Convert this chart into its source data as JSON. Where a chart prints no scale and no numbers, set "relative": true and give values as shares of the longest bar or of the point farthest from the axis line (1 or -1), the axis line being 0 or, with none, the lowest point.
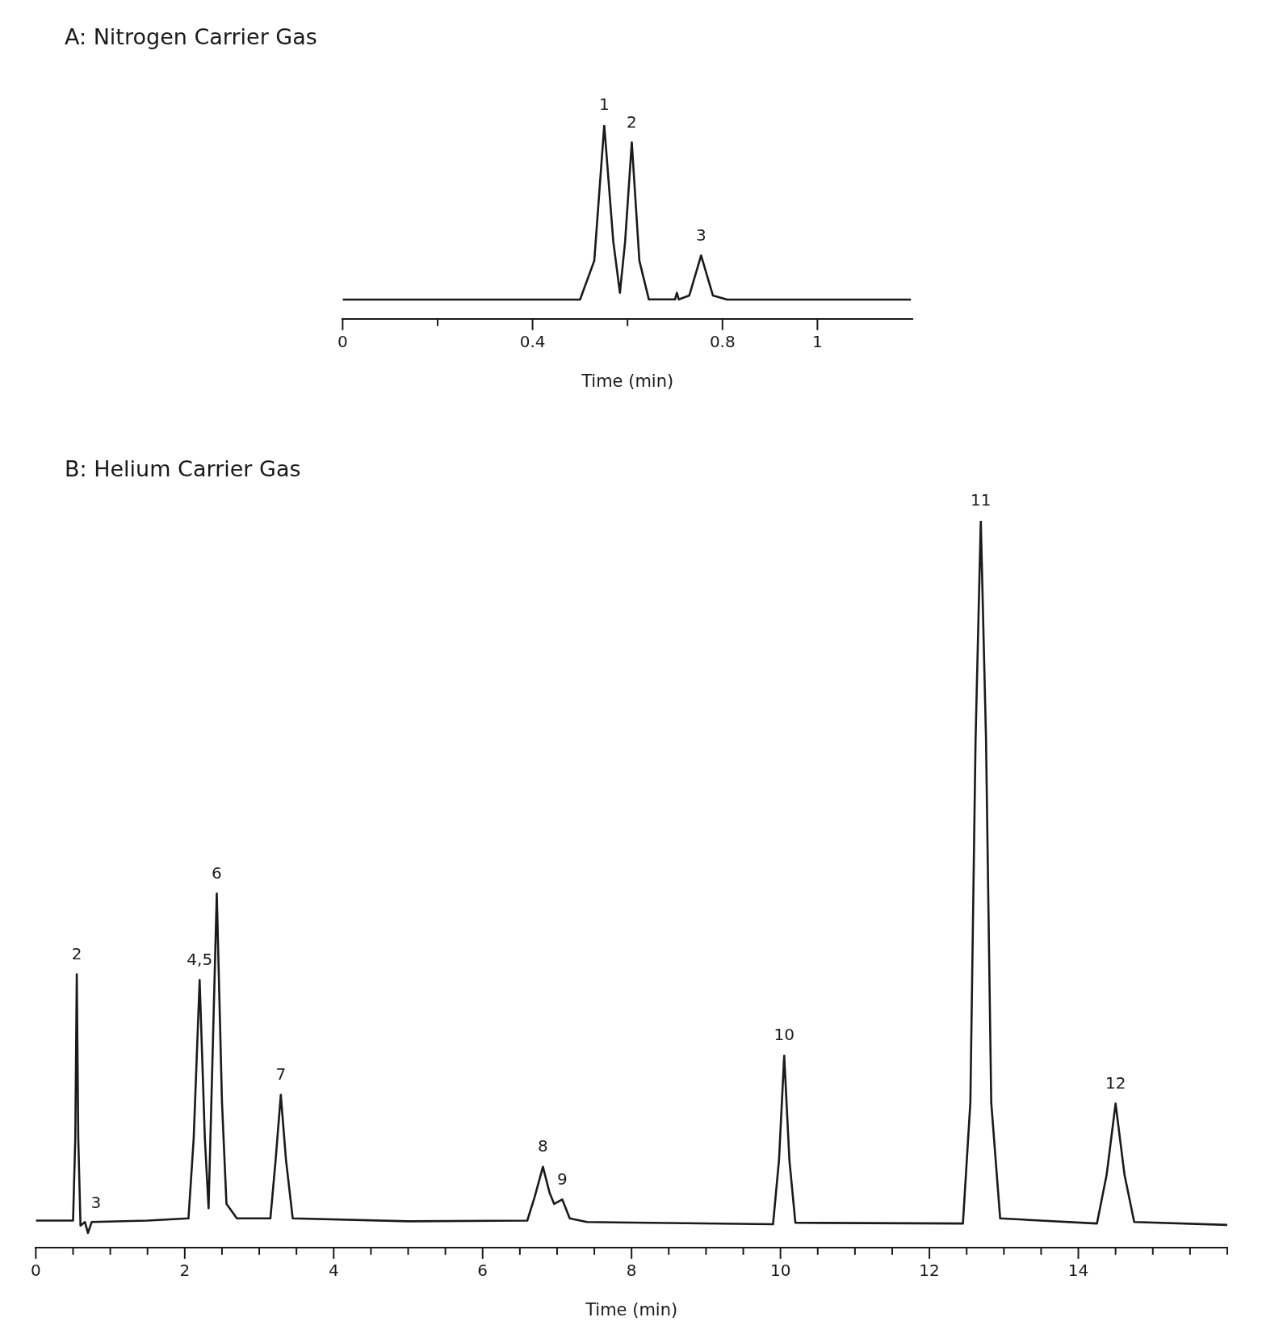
{
  "chart_data": [
    {
      "type": "line",
      "title": "A: Nitrogen Carrier Gas",
      "xlabel": "Time (min)",
      "relative": true,
      "grid": false,
      "legend": false,
      "marker": "none",
      "line_style": "solid",
      "xlim": [
        0,
        1.2
      ],
      "xticks": [
        0,
        {
          "value": 0.2,
          "label": null
        },
        0.4,
        {
          "value": 0.6,
          "label": null
        },
        0.8,
        1
      ],
      "series": [
        {
          "color": "#1a1a1a",
          "x": [
            0,
            0.5,
            0.53,
            0.551,
            0.57,
            0.584,
            0.595,
            0.609,
            0.625,
            0.645,
            0.7,
            0.704,
            0.708,
            0.73,
            0.755,
            0.78,
            0.81,
            1.197
          ],
          "values": [
            0.099,
            0.099,
            0.3,
            1,
            0.4,
            0.134,
            0.4,
            0.911,
            0.3,
            0.1,
            0.1,
            0.134,
            0.1,
            0.12,
            0.327,
            0.12,
            0.099,
            0.099
          ]
        }
      ],
      "annotations": [
        {
          "text": "1",
          "x": 0.551,
          "y": 1
        },
        {
          "text": "2",
          "x": 0.609,
          "y": 0.911
        },
        {
          "text": "3",
          "x": 0.755,
          "y": 0.327
        }
      ]
    },
    {
      "type": "line",
      "title": "B: Helium Carrier Gas",
      "xlabel": "Time (min)",
      "relative": true,
      "grid": false,
      "legend": false,
      "marker": "none",
      "line_style": "solid",
      "xlim": [
        0,
        16
      ],
      "xticks": [
        0,
        {
          "value": 0.5,
          "label": null
        },
        {
          "value": 1,
          "label": null
        },
        {
          "value": 1.5,
          "label": null
        },
        2,
        {
          "value": 2.5,
          "label": null
        },
        {
          "value": 3,
          "label": null
        },
        {
          "value": 3.5,
          "label": null
        },
        4,
        {
          "value": 4.5,
          "label": null
        },
        {
          "value": 5,
          "label": null
        },
        {
          "value": 5.5,
          "label": null
        },
        6,
        {
          "value": 6.5,
          "label": null
        },
        {
          "value": 7,
          "label": null
        },
        {
          "value": 7.5,
          "label": null
        },
        8,
        {
          "value": 8.5,
          "label": null
        },
        {
          "value": 9,
          "label": null
        },
        {
          "value": 9.5,
          "label": null
        },
        10,
        {
          "value": 10.5,
          "label": null
        },
        {
          "value": 11,
          "label": null
        },
        {
          "value": 11.5,
          "label": null
        },
        12,
        {
          "value": 12.5,
          "label": null
        },
        {
          "value": 13,
          "label": null
        },
        {
          "value": 13.5,
          "label": null
        },
        14,
        {
          "value": 14.5,
          "label": null
        },
        {
          "value": 15,
          "label": null
        },
        {
          "value": 15.5,
          "label": null
        },
        {
          "value": 16,
          "label": null
        }
      ],
      "series": [
        {
          "color": "#1a1a1a",
          "x": [
            0,
            0.5,
            0.53,
            0.55,
            0.57,
            0.6,
            0.66,
            0.7,
            0.75,
            1.5,
            2.05,
            2.12,
            2.2,
            2.27,
            2.32,
            2.37,
            2.43,
            2.5,
            2.56,
            2.7,
            3.15,
            3.22,
            3.29,
            3.36,
            3.45,
            5,
            6.6,
            6.7,
            6.81,
            6.9,
            6.96,
            7.07,
            7.17,
            7.4,
            9.9,
            9.98,
            10.05,
            10.12,
            10.2,
            12.45,
            12.55,
            12.62,
            12.69,
            12.76,
            12.83,
            12.95,
            14.25,
            14.38,
            14.5,
            14.62,
            14.75,
            16
          ],
          "values": [
            0.037,
            0.037,
            0.15,
            0.376,
            0.15,
            0.03,
            0.035,
            0.02,
            0.035,
            0.037,
            0.04,
            0.15,
            0.368,
            0.15,
            0.054,
            0.25,
            0.487,
            0.2,
            0.06,
            0.04,
            0.04,
            0.12,
            0.21,
            0.12,
            0.04,
            0.036,
            0.037,
            0.07,
            0.111,
            0.075,
            0.06,
            0.066,
            0.04,
            0.035,
            0.032,
            0.12,
            0.264,
            0.12,
            0.034,
            0.033,
            0.2,
            0.7,
            1,
            0.7,
            0.2,
            0.04,
            0.033,
            0.1,
            0.198,
            0.1,
            0.035,
            0.031
          ]
        }
      ],
      "annotations": [
        {
          "text": "2",
          "x": 0.55,
          "y": 0.376
        },
        {
          "text": "3",
          "x": 0.7,
          "y": 0.02
        },
        {
          "text": "4,5",
          "x": 2.2,
          "y": 0.368
        },
        {
          "text": "6",
          "x": 2.43,
          "y": 0.487
        },
        {
          "text": "7",
          "x": 3.29,
          "y": 0.21
        },
        {
          "text": "8",
          "x": 6.81,
          "y": 0.111
        },
        {
          "text": "9",
          "x": 7.07,
          "y": 0.066
        },
        {
          "text": "10",
          "x": 10.05,
          "y": 0.264
        },
        {
          "text": "11",
          "x": 12.69,
          "y": 1
        },
        {
          "text": "12",
          "x": 14.5,
          "y": 0.198
        }
      ]
    }
  ]
}
